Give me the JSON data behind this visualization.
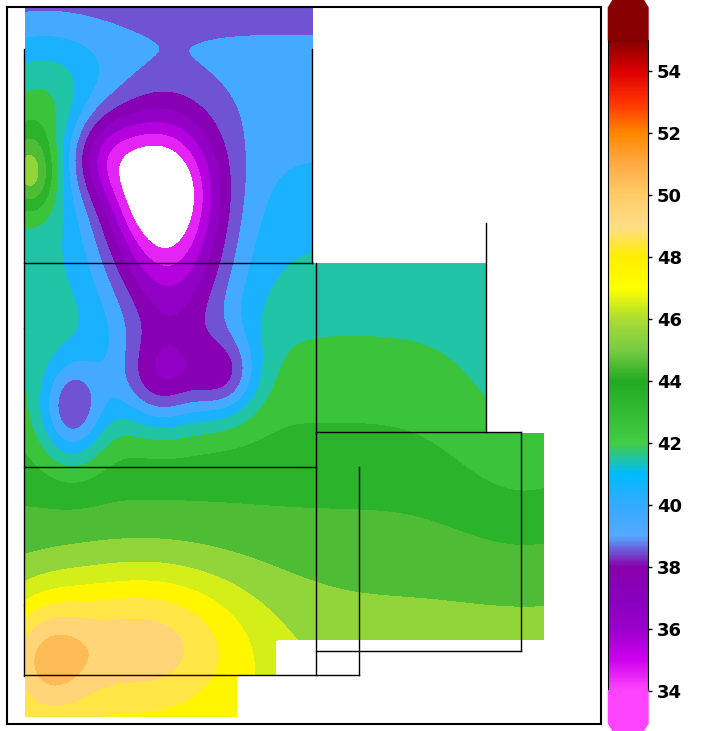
{
  "figsize": [
    7.2,
    7.31
  ],
  "dpi": 100,
  "vmin": 34,
  "vmax": 55,
  "colorbar_ticks": [
    34,
    36,
    38,
    40,
    42,
    44,
    46,
    48,
    50,
    52,
    54
  ],
  "colorbar_tick_labels": [
    "34",
    "36",
    "38",
    "40",
    "42",
    "44",
    "46",
    "48",
    "50",
    "52",
    "54"
  ],
  "cb_tick_fontsize": 13,
  "cmap_colors": [
    [
      0.0,
      "#ff44ff"
    ],
    [
      0.048,
      "#cc00ee"
    ],
    [
      0.095,
      "#9900cc"
    ],
    [
      0.143,
      "#8800bb"
    ],
    [
      0.19,
      "#8800aa"
    ],
    [
      0.238,
      "#55aaff"
    ],
    [
      0.286,
      "#33aaff"
    ],
    [
      0.333,
      "#00bbff"
    ],
    [
      0.381,
      "#44cc44"
    ],
    [
      0.429,
      "#33bb33"
    ],
    [
      0.476,
      "#22aa22"
    ],
    [
      0.524,
      "#77cc44"
    ],
    [
      0.571,
      "#aadd33"
    ],
    [
      0.619,
      "#ffff00"
    ],
    [
      0.667,
      "#ffee00"
    ],
    [
      0.714,
      "#ffdd88"
    ],
    [
      0.762,
      "#ffcc66"
    ],
    [
      0.81,
      "#ffaa44"
    ],
    [
      0.857,
      "#ff8800"
    ],
    [
      0.905,
      "#ff3300"
    ],
    [
      0.952,
      "#dd0000"
    ],
    [
      1.0,
      "#880000"
    ]
  ],
  "map_xlim": [
    -104.5,
    -89.0
  ],
  "map_ylim": [
    39.3,
    49.6
  ],
  "border_color": "black",
  "border_lw": 1.0
}
